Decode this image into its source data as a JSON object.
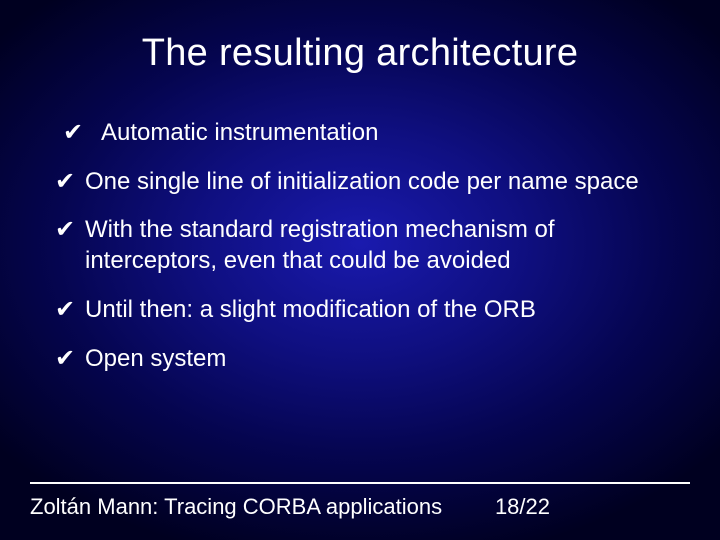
{
  "colors": {
    "background_center": "#1a1aae",
    "background_mid": "#0f0f80",
    "background_outer": "#000020",
    "text": "#ffffff",
    "divider": "#ffffff"
  },
  "typography": {
    "title_fontsize": 38,
    "body_fontsize": 24,
    "footer_fontsize": 22,
    "font_family": "Arial"
  },
  "title": "The resulting architecture",
  "bullet_marker": "✔",
  "bullets": [
    "Automatic instrumentation",
    "One single line of initialization code per  name space",
    "With the standard registration mechanism  of interceptors, even that could be avoided",
    "Until then: a slight modification of the ORB",
    "Open system"
  ],
  "footer": {
    "author": "Zoltán Mann: Tracing CORBA applications",
    "page": "18/22"
  }
}
